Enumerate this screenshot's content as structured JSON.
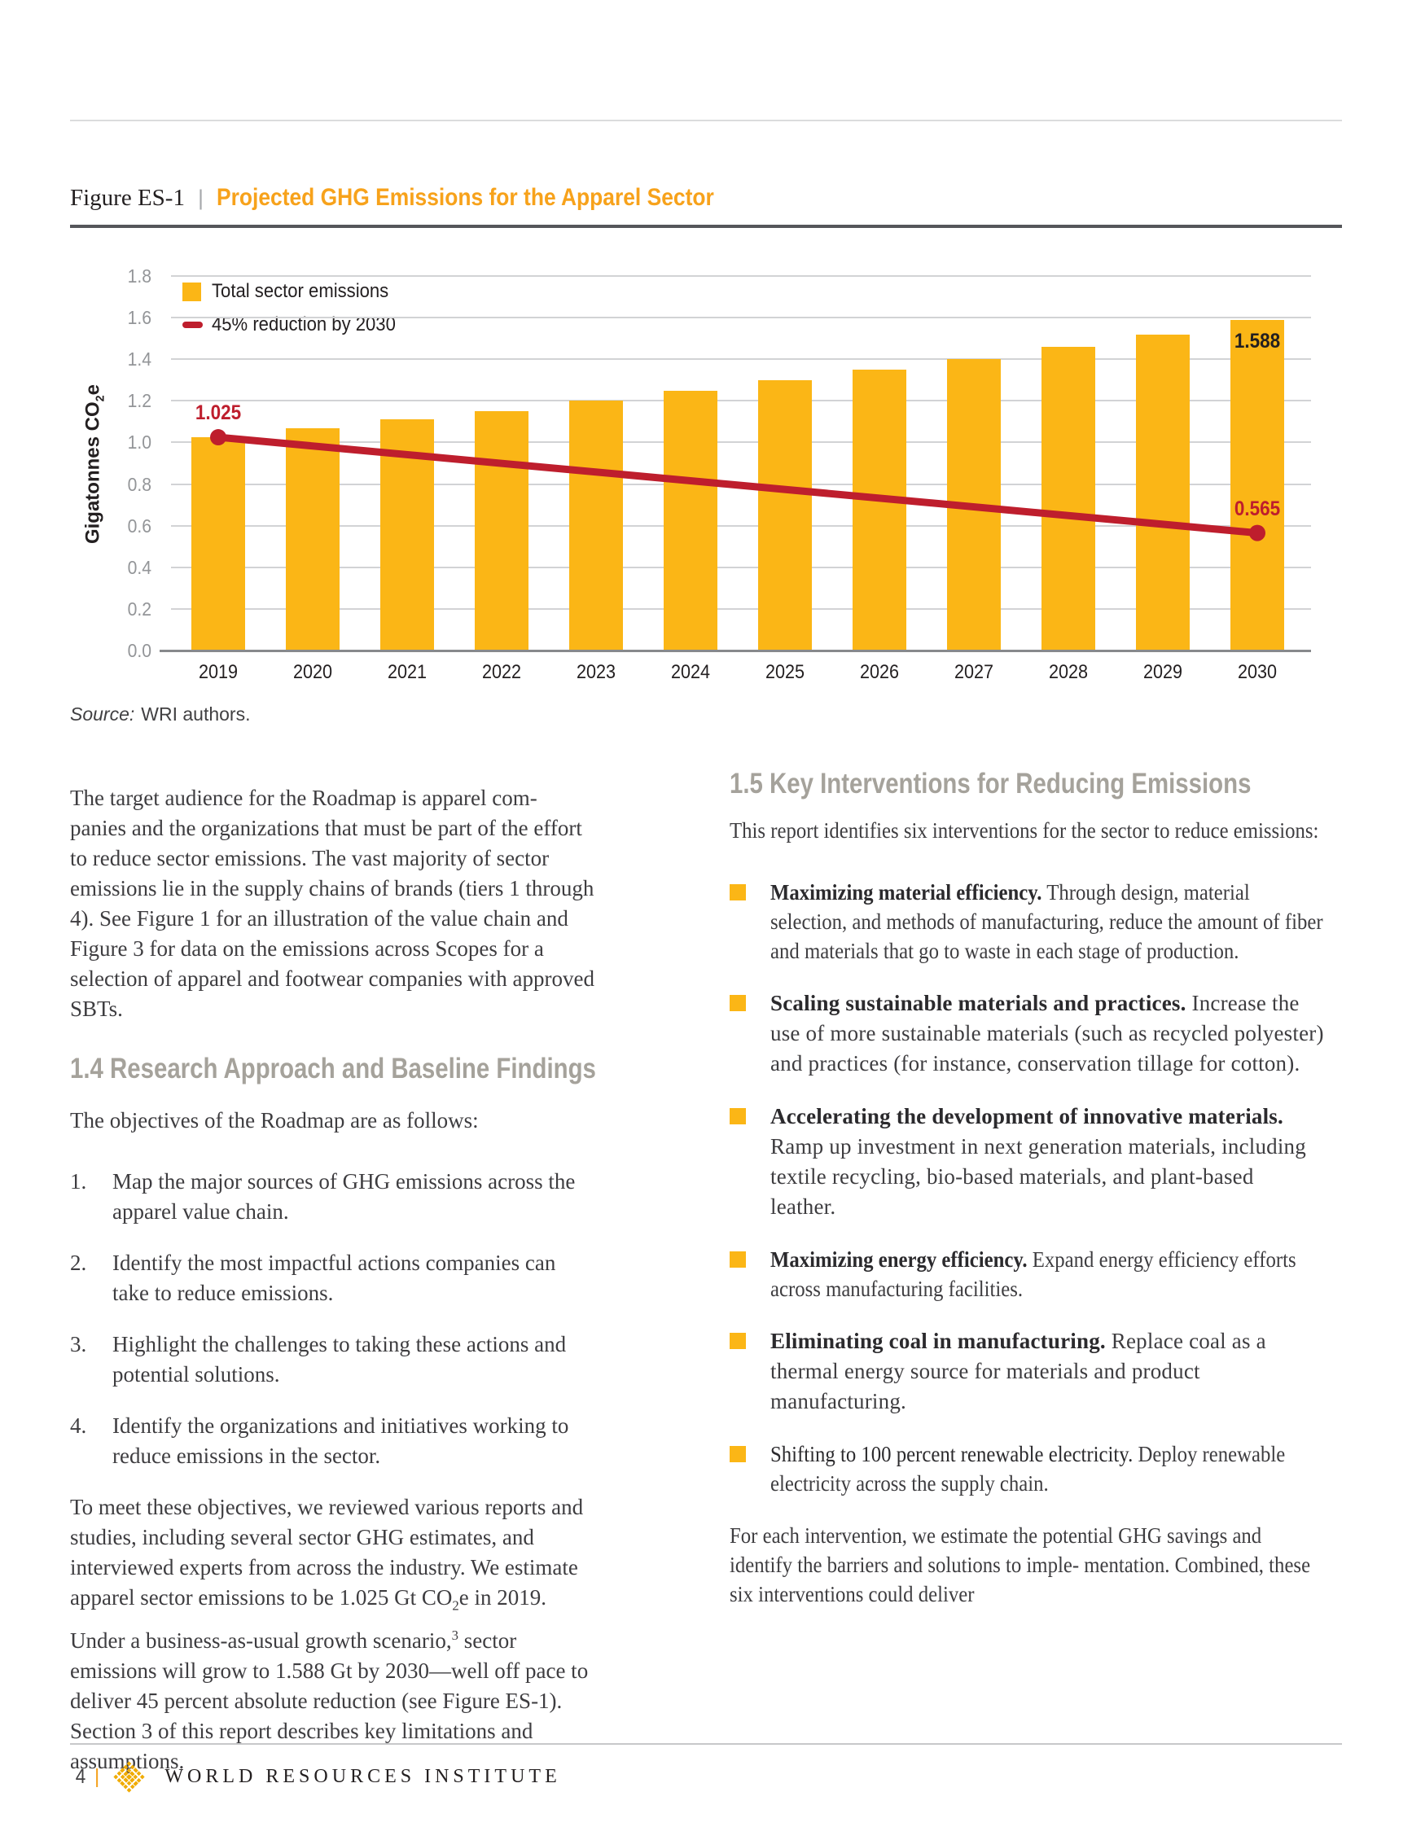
{
  "figure": {
    "label": "Figure ES-1",
    "separator": "|",
    "title": "Projected GHG Emissions for the Apparel Sector"
  },
  "chart_data": {
    "type": "bar",
    "title": "Projected GHG Emissions for the Apparel Sector",
    "categories": [
      "2019",
      "2020",
      "2021",
      "2022",
      "2023",
      "2024",
      "2025",
      "2026",
      "2027",
      "2028",
      "2029",
      "2030"
    ],
    "series": [
      {
        "name": "Total sector emissions",
        "type": "bar",
        "color": "#FBB616",
        "values": [
          1.025,
          1.07,
          1.11,
          1.15,
          1.2,
          1.25,
          1.3,
          1.35,
          1.4,
          1.46,
          1.52,
          1.588
        ]
      },
      {
        "name": "45% reduction by 2030",
        "type": "line",
        "color": "#BE1E2D",
        "points": [
          {
            "year": "2019",
            "value": 1.025
          },
          {
            "year": "2030",
            "value": 0.565
          }
        ]
      }
    ],
    "ylabel": "Gigatonnes CO2e",
    "ylabel_html": "Gigatonnes CO<sub>2</sub>e",
    "ylim": [
      0,
      1.8
    ],
    "yticks": [
      0,
      0.2,
      0.4,
      0.6,
      0.8,
      1.0,
      1.2,
      1.4,
      1.6,
      1.8
    ],
    "grid": true,
    "legend_position": "top-left",
    "annotations": [
      {
        "text": "1.025",
        "year": "2019",
        "value": 1.025,
        "color": "#BE1E2D",
        "placement": "above"
      },
      {
        "text": "1.588",
        "year": "2030",
        "value": 1.588,
        "color": "#231F20",
        "placement": "inside-top"
      },
      {
        "text": "0.565",
        "year": "2030",
        "value": 0.565,
        "color": "#BE1E2D",
        "placement": "above"
      }
    ]
  },
  "source": {
    "prefix": "Source:",
    "text": "WRI authors."
  },
  "left_column": {
    "paragraph1": "The target audience for the Roadmap is apparel com- panies and the organizations that must be part of the effort to reduce sector emissions. The vast majority of sector emissions lie in the supply chains of brands (tiers 1 through 4). See Figure 1 for an illustration of the value chain and Figure 3 for data on the emissions across Scopes for a selection of apparel and footwear companies with approved SBTs.",
    "heading": "1.4 Research Approach and Baseline Findings",
    "objectives_intro": "The objectives of the Roadmap are as follows:",
    "objectives": [
      {
        "num": "1.",
        "text": "Map the major sources of GHG emissions across the apparel value chain."
      },
      {
        "num": "2.",
        "text": "Identify the most impactful actions companies can take to reduce emissions."
      },
      {
        "num": "3.",
        "text": "Highlight the challenges to taking these actions and potential solutions."
      },
      {
        "num": "4.",
        "text": "Identify the organizations and initiatives working to reduce emissions in the sector."
      }
    ],
    "paragraph2_html": "To meet these objectives, we reviewed various reports and studies, including several sector GHG estimates, and interviewed experts from across the industry. We estimate apparel sector emissions to be 1.025 Gt CO<sub>2</sub>e in 2019. Under a business-as-usual growth scenario,<sup>3</sup> sector emissions will grow to 1.588 Gt by 2030—well off pace to deliver 45 percent absolute reduction (see Figure ES-1). Section 3 of this report describes key limitations and assumptions."
  },
  "right_column": {
    "heading": "1.5 Key Interventions for Reducing Emissions",
    "intro": "This report identifies six interventions for the sector to reduce emissions:",
    "bullets": [
      {
        "title": "Maximizing material efficiency.",
        "body": " Through design, material selection, and methods of manufacturing, reduce the amount of fiber and materials that go to waste in each stage of production."
      },
      {
        "title": "Scaling sustainable materials and practices.",
        "body": " Increase the use of more sustainable materials (such as recycled polyester) and practices (for instance, conservation tillage for cotton)."
      },
      {
        "title": "Accelerating the development of innovative materials.",
        "body": " Ramp up investment in next generation materials, including textile recycling, bio-based materials, and plant-based leather."
      },
      {
        "title": "Maximizing energy efficiency.",
        "body": " Expand energy efficiency efforts across manufacturing facilities."
      },
      {
        "title": "Eliminating coal in manufacturing.",
        "body": " Replace coal as a thermal energy source for materials and product manufacturing."
      },
      {
        "title": "Shifting to 100 percent renewable electricity.",
        "body": " Deploy renewable electricity across the supply chain."
      }
    ],
    "closing": "For each intervention, we estimate the potential GHG savings and identify the barriers and solutions to imple- mentation. Combined, these six interventions could deliver"
  },
  "footer": {
    "page_number": "4",
    "separator": "|",
    "organization": "WORLD RESOURCES INSTITUTE"
  }
}
